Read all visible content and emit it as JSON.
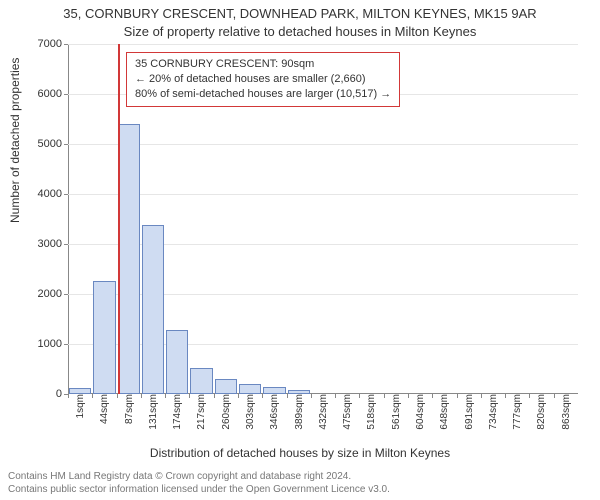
{
  "title_line1": "35, CORNBURY CRESCENT, DOWNHEAD PARK, MILTON KEYNES, MK15 9AR",
  "title_line2": "Size of property relative to detached houses in Milton Keynes",
  "ylabel": "Number of detached properties",
  "xlabel": "Distribution of detached houses by size in Milton Keynes",
  "chart": {
    "type": "histogram",
    "ylim": [
      0,
      7000
    ],
    "ytick_step": 1000,
    "yticks": [
      0,
      1000,
      2000,
      3000,
      4000,
      5000,
      6000,
      7000
    ],
    "bar_fill": "#cfdcf2",
    "bar_stroke": "#6a88c1",
    "grid_color": "#e6e6e6",
    "axis_color": "#888888",
    "background": "#ffffff",
    "values": [
      120,
      2260,
      5400,
      3380,
      1280,
      520,
      300,
      200,
      140,
      80,
      0,
      0,
      0,
      0,
      0,
      0,
      0,
      0,
      0,
      0,
      0
    ],
    "xtick_labels": [
      "1sqm",
      "44sqm",
      "87sqm",
      "131sqm",
      "174sqm",
      "217sqm",
      "260sqm",
      "303sqm",
      "346sqm",
      "389sqm",
      "432sqm",
      "475sqm",
      "518sqm",
      "561sqm",
      "604sqm",
      "648sqm",
      "691sqm",
      "734sqm",
      "777sqm",
      "820sqm",
      "863sqm"
    ],
    "marker": {
      "value_sqm": 90,
      "x_axis_min": 1,
      "x_axis_step": 43,
      "color": "#d23838"
    },
    "callout": {
      "line1": "35 CORNBURY CRESCENT: 90sqm",
      "line2": "← 20% of detached houses are smaller (2,660)",
      "line3": "80% of semi-detached houses are larger (10,517) →",
      "border_color": "#d23838"
    }
  },
  "footer": {
    "line1": "Contains HM Land Registry data © Crown copyright and database right 2024.",
    "line2": "Contains public sector information licensed under the Open Government Licence v3.0."
  }
}
